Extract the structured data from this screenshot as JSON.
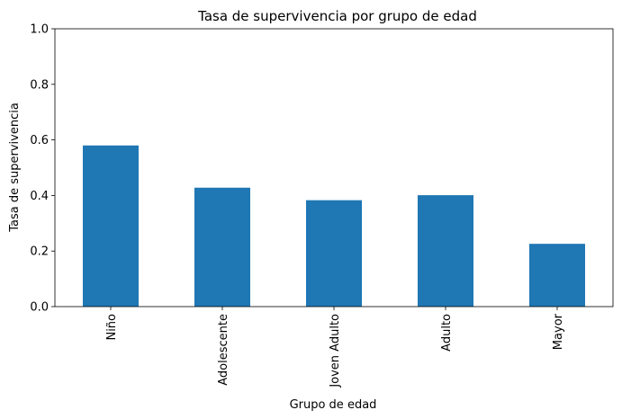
{
  "chart_data": {
    "type": "bar",
    "title": "Tasa de supervivencia por grupo de edad",
    "xlabel": "Grupo de edad",
    "ylabel": "Tasa de supervivencia",
    "categories": [
      "Niño",
      "Adolescente",
      "Joven Adulto",
      "Adulto",
      "Mayor"
    ],
    "values": [
      0.58,
      0.428,
      0.383,
      0.401,
      0.226
    ],
    "ylim": [
      0,
      1.0
    ],
    "yticks": [
      "0.0",
      "0.2",
      "0.4",
      "0.6",
      "0.8",
      "1.0"
    ],
    "grid": false,
    "bar_color": "#1f77b4"
  }
}
